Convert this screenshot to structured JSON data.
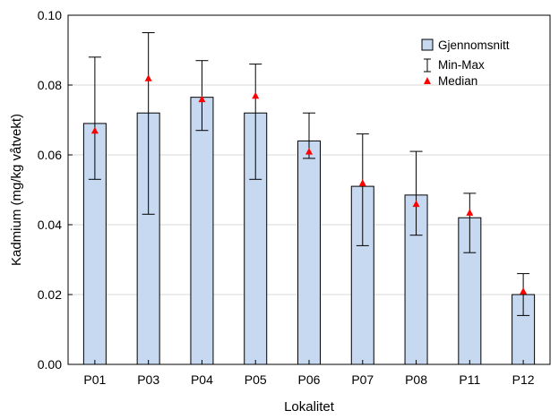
{
  "chart_data": {
    "type": "bar",
    "title": "",
    "xlabel": "Lokalitet",
    "ylabel": "Kadmium (mg/kg våtvekt)",
    "ylim": [
      0,
      0.1
    ],
    "yticks": [
      "0.00",
      "0.02",
      "0.04",
      "0.06",
      "0.08",
      "0.10"
    ],
    "grid": "horizontal",
    "legend_position": "top-right",
    "categories": [
      "P01",
      "P03",
      "P04",
      "P05",
      "P06",
      "P07",
      "P08",
      "P11",
      "P12"
    ],
    "series": [
      {
        "name": "Gjennomsnitt",
        "values": [
          0.069,
          0.072,
          0.0765,
          0.072,
          0.064,
          0.051,
          0.0485,
          0.042,
          0.02
        ]
      },
      {
        "name": "Min-Max",
        "min": [
          0.053,
          0.043,
          0.067,
          0.053,
          0.059,
          0.034,
          0.037,
          0.032,
          0.014
        ],
        "max": [
          0.088,
          0.095,
          0.087,
          0.086,
          0.072,
          0.066,
          0.061,
          0.049,
          0.026
        ]
      },
      {
        "name": "Median",
        "values": [
          0.067,
          0.082,
          0.076,
          0.077,
          0.061,
          0.052,
          0.046,
          0.0435,
          0.021
        ]
      }
    ],
    "colors": {
      "bar_fill": "#c6d9f1",
      "bar_stroke": "#000000",
      "median_marker": "#ff0000",
      "grid": "#d9d9d9"
    }
  }
}
